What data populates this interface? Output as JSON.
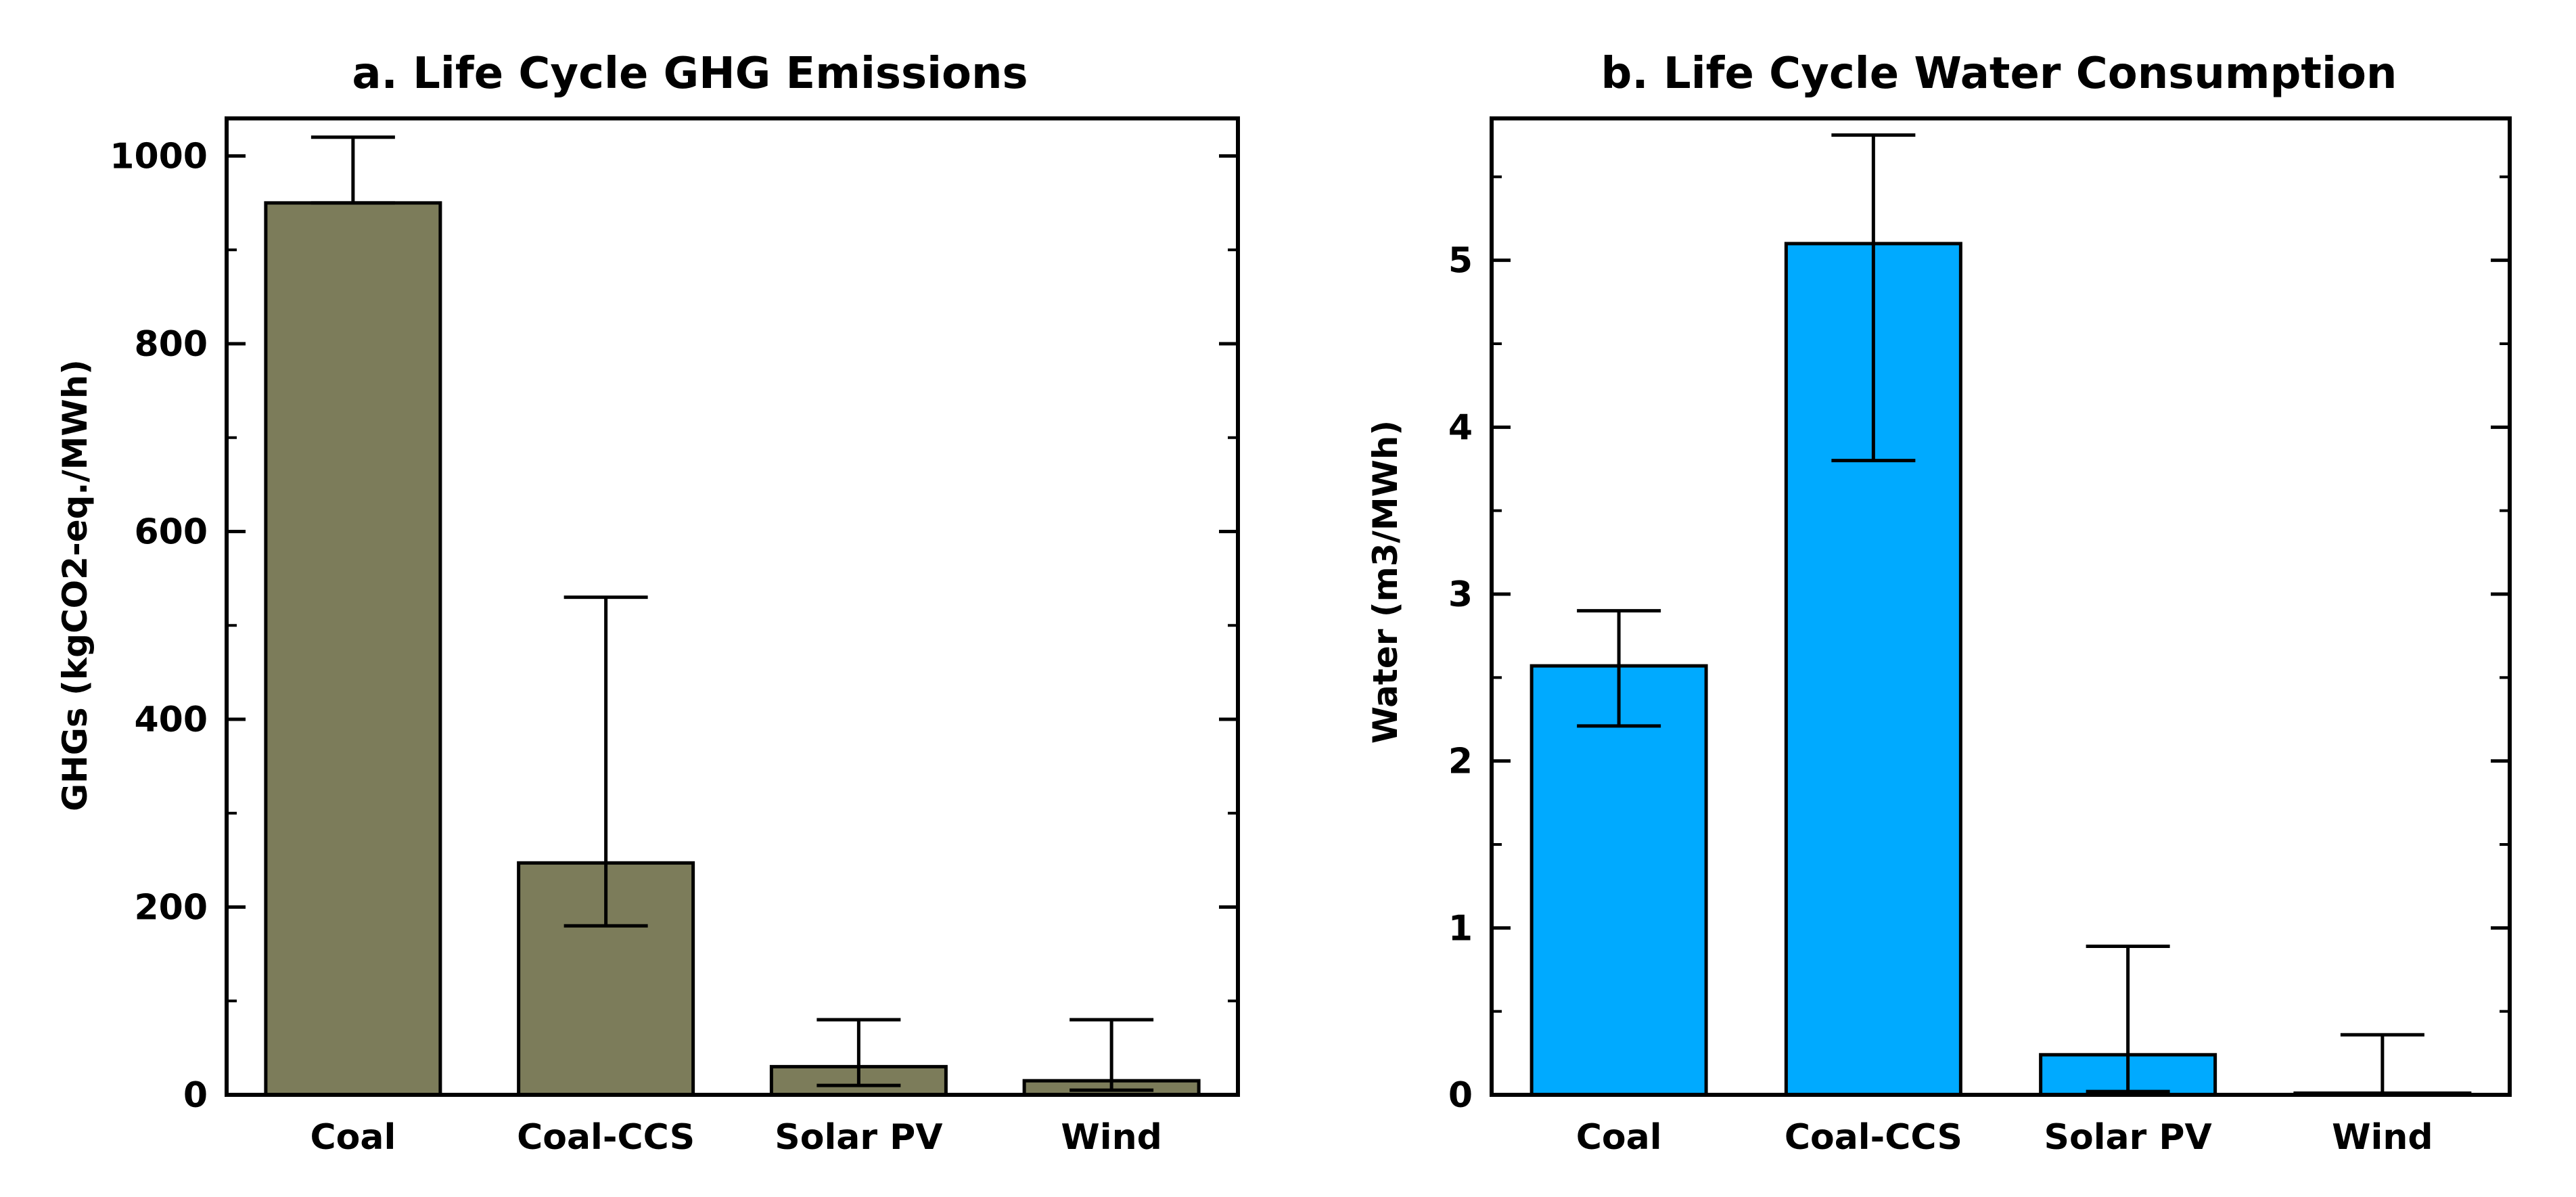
{
  "chart_data": [
    {
      "type": "bar",
      "title": "a. Life Cycle GHG Emissions",
      "xlabel": "",
      "ylabel": "GHGs (kgCO2-eq./MWh)",
      "categories": [
        "Coal",
        "Coal-CCS",
        "Solar PV",
        "Wind"
      ],
      "values": [
        950,
        247,
        30,
        15
      ],
      "error_low": [
        950,
        180,
        10,
        5
      ],
      "error_high": [
        1020,
        530,
        80,
        80
      ],
      "ylim": [
        0,
        1040
      ],
      "yticks": [
        0,
        200,
        400,
        600,
        800,
        1000
      ],
      "ytick_labels": [
        "0",
        "200",
        "400",
        "600",
        "800",
        "1000"
      ],
      "minor_step": 100,
      "bar_color": "#7c7c5a",
      "grid": false
    },
    {
      "type": "bar",
      "title": "b. Life Cycle Water Consumption",
      "xlabel": "",
      "ylabel": "Water (m3/MWh)",
      "categories": [
        "Coal",
        "Coal-CCS",
        "Solar PV",
        "Wind"
      ],
      "values": [
        2.57,
        5.1,
        0.24,
        0.01
      ],
      "error_low": [
        2.21,
        3.8,
        0.02,
        0.0
      ],
      "error_high": [
        2.9,
        5.75,
        0.89,
        0.36
      ],
      "ylim": [
        0,
        5.85
      ],
      "yticks": [
        0,
        1,
        2,
        3,
        4,
        5
      ],
      "ytick_labels": [
        "0",
        "1",
        "2",
        "3",
        "4",
        "5"
      ],
      "minor_step": 0.5,
      "bar_color": "#00aaff",
      "grid": false
    }
  ]
}
